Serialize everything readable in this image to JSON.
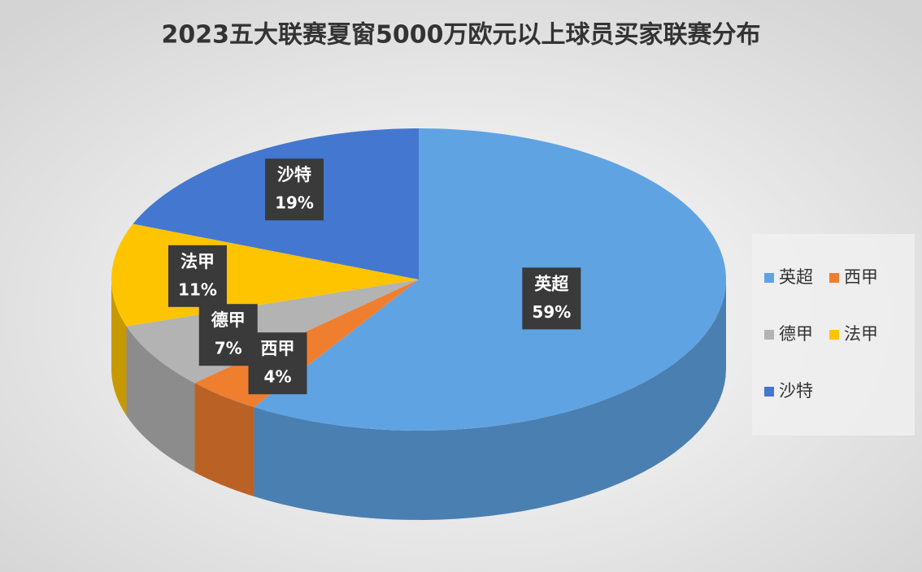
{
  "chart_data": {
    "type": "pie",
    "title": "2023五大联赛夏窗5000万欧元以上球员买家联赛分布",
    "categories": [
      "英超",
      "西甲",
      "德甲",
      "法甲",
      "沙特"
    ],
    "values": [
      59,
      4,
      7,
      11,
      19
    ],
    "value_labels": [
      "59%",
      "4%",
      "7%",
      "11%",
      "19%"
    ],
    "colors": [
      "#5fa3e3",
      "#ef7e2f",
      "#b3b3b3",
      "#ffc400",
      "#4477cf"
    ],
    "legend": "right"
  }
}
